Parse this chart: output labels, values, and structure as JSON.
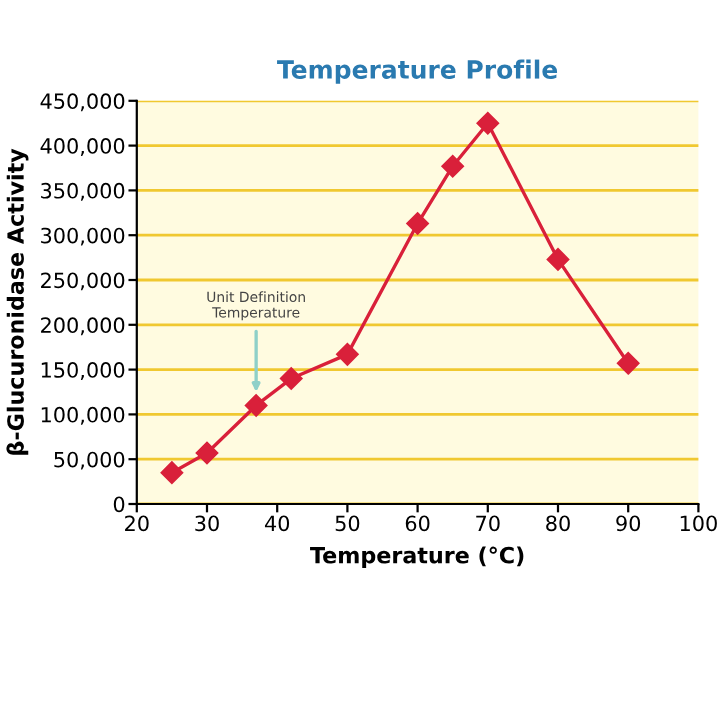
{
  "chart_data": {
    "type": "line",
    "title": "Temperature Profile",
    "xlabel": "Temperature (°C)",
    "ylabel": "β-Glucuronidase Activity",
    "x": [
      25,
      30,
      37,
      42,
      50,
      60,
      65,
      70,
      80,
      90
    ],
    "series": [
      {
        "color": "#d9203a",
        "values": [
          35000,
          57000,
          110000,
          140000,
          167000,
          313000,
          377000,
          425000,
          273000,
          157000
        ]
      }
    ],
    "xlim": [
      20,
      100
    ],
    "xticks": [
      20,
      30,
      40,
      50,
      60,
      70,
      80,
      90,
      100
    ],
    "ylim": [
      0,
      450000
    ],
    "yticks": [
      {
        "value": 0,
        "label": "0"
      },
      {
        "value": 50000,
        "label": "50,000"
      },
      {
        "value": 100000,
        "label": "100,000"
      },
      {
        "value": 150000,
        "label": "150,000"
      },
      {
        "value": 200000,
        "label": "200,000"
      },
      {
        "value": 250000,
        "label": "250,000"
      },
      {
        "value": 300000,
        "label": "300,000"
      },
      {
        "value": 350000,
        "label": "350,000"
      },
      {
        "value": 400000,
        "label": "400,000"
      },
      {
        "value": 450000,
        "label": "450,000"
      }
    ],
    "grid": "y",
    "marker": "diamond",
    "line_style": "solid",
    "annotations": [
      {
        "text": "Unit Definition\nTemperature",
        "x": 37,
        "y": 125000
      }
    ]
  }
}
